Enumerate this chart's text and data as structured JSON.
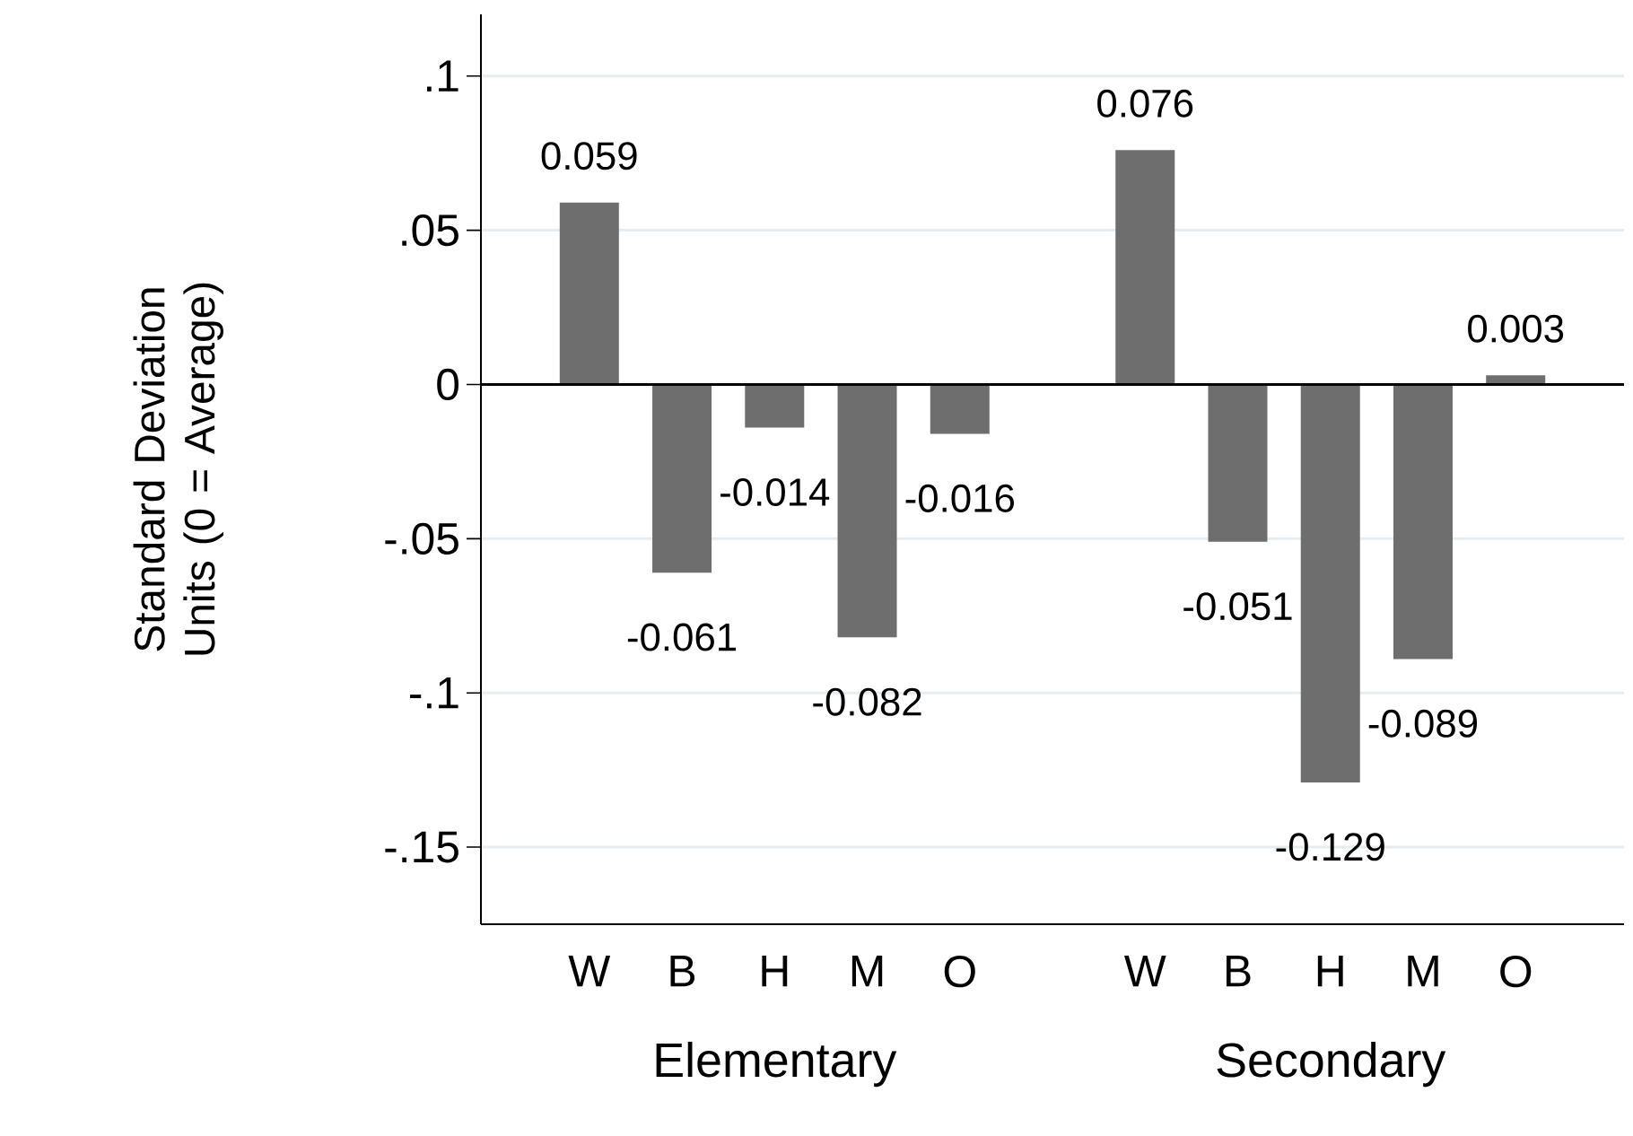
{
  "chart_data": {
    "type": "bar",
    "ylabel": "Standard Deviation Units (0 = Average)",
    "categories": [
      "W",
      "B",
      "H",
      "M",
      "O",
      null,
      "W",
      "B",
      "H",
      "M",
      "O"
    ],
    "values": [
      0.059,
      -0.061,
      -0.014,
      -0.082,
      -0.016,
      null,
      0.076,
      -0.051,
      -0.129,
      -0.089,
      0.003
    ],
    "color": "#6e6e6e",
    "data_labels": true,
    "ylim": [
      -0.175,
      0.12
    ],
    "yticks": [
      {
        "value": -0.15,
        "label": "-.15"
      },
      {
        "value": -0.1,
        "label": "-.1"
      },
      {
        "value": -0.05,
        "label": "-.05"
      },
      {
        "value": 0,
        "label": "0"
      },
      {
        "value": 0.05,
        "label": ".05"
      },
      {
        "value": 0.1,
        "label": ".1"
      }
    ],
    "grid": "y",
    "ref_lines": [
      {
        "axis": "y",
        "value": 0,
        "color": "#000000"
      }
    ],
    "annotations": [
      "Elementary",
      "Secondary"
    ]
  }
}
